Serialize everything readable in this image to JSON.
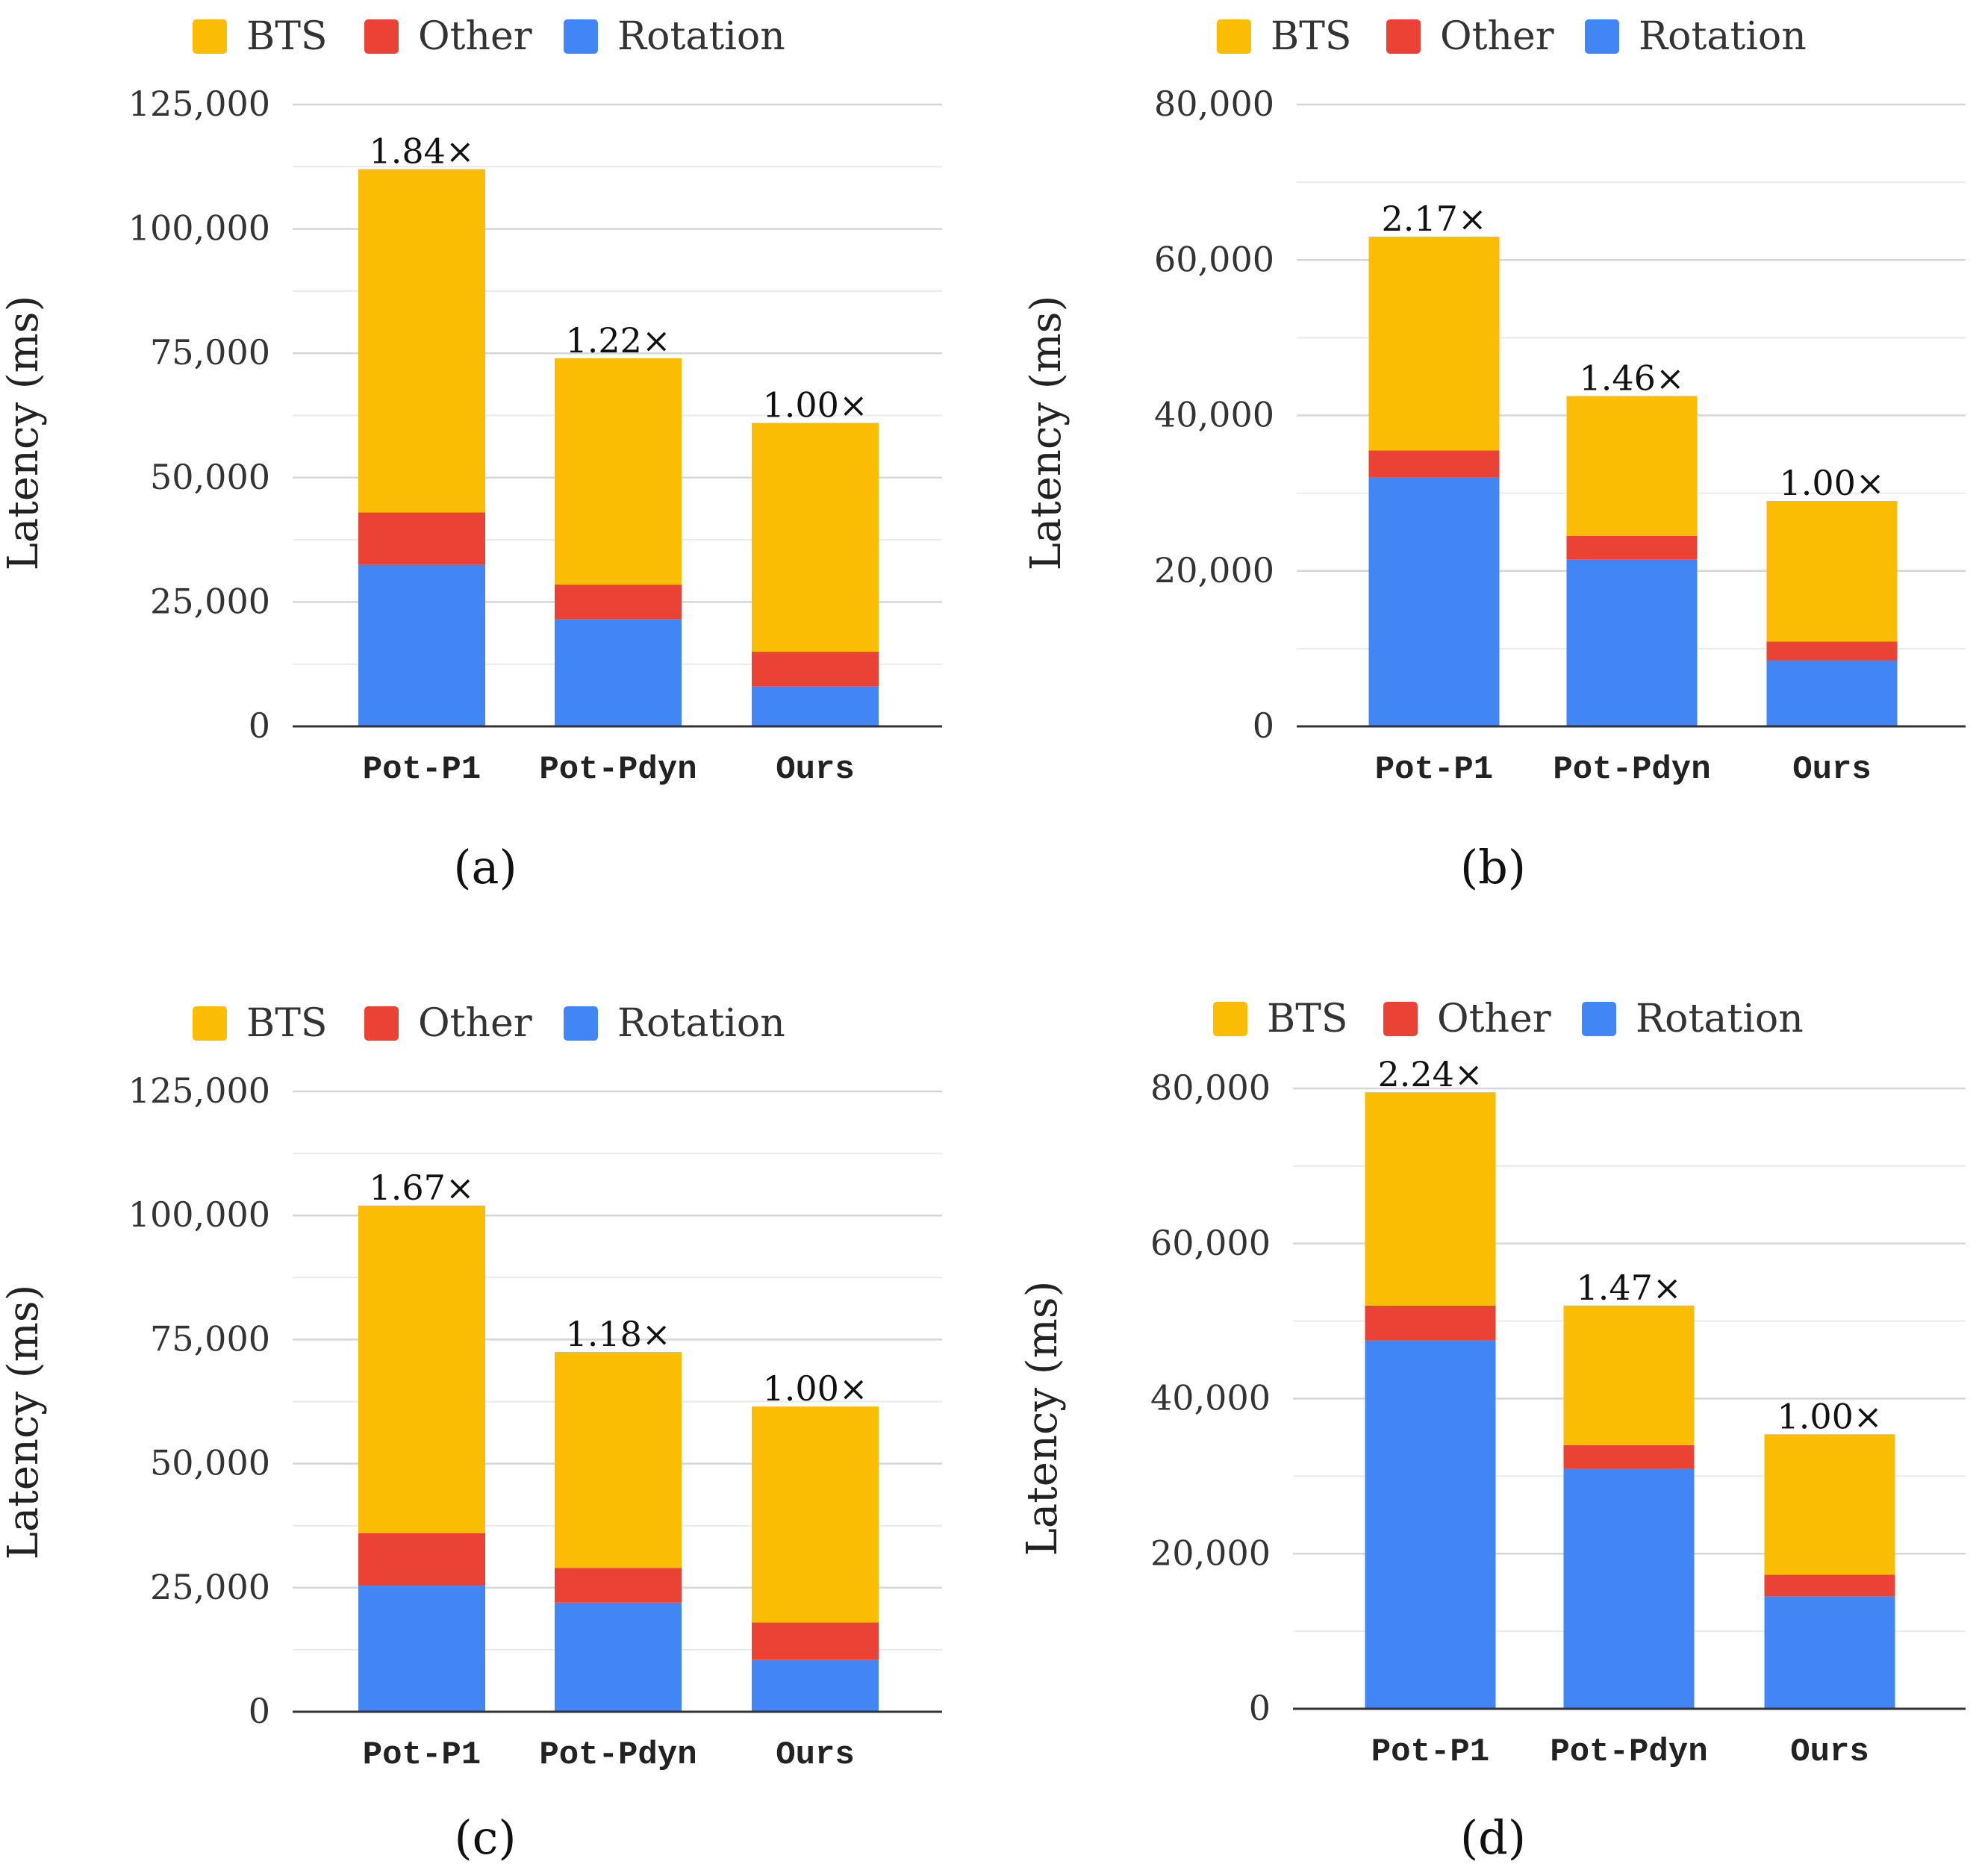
{
  "figure": {
    "legend_labels": [
      "BTS",
      "Other",
      "Rotation"
    ],
    "colors": {
      "BTS": "#FBBC04",
      "Other": "#EA4335",
      "Rotation": "#4285F4",
      "grid": "#d6d6d6",
      "axis": "#333333"
    }
  },
  "chart_data": [
    {
      "type": "bar",
      "stacked": true,
      "panel_label": "(a)",
      "categories": [
        "Pot-P1",
        "Pot-Pdyn",
        "Ours"
      ],
      "series": [
        {
          "name": "Rotation",
          "values": [
            32500,
            21500,
            8000
          ]
        },
        {
          "name": "Other",
          "values": [
            10500,
            7000,
            7000
          ]
        },
        {
          "name": "BTS",
          "values": [
            69000,
            45500,
            46000
          ]
        }
      ],
      "totals": [
        112000,
        74000,
        61000
      ],
      "annotations": [
        "1.84×",
        "1.22×",
        "1.00×"
      ],
      "ylabel": "Latency (ms)",
      "ylim": [
        0,
        125000
      ],
      "yticks": [
        0,
        25000,
        50000,
        75000,
        100000,
        125000
      ],
      "ytick_labels": [
        "0",
        "25,000",
        "50,000",
        "75,000",
        "100,000",
        "125,000"
      ],
      "minor_grid_step": 12500,
      "legend": [
        "BTS",
        "Other",
        "Rotation"
      ],
      "legend_position": "top"
    },
    {
      "type": "bar",
      "stacked": true,
      "panel_label": "(b)",
      "categories": [
        "Pot-P1",
        "Pot-Pdyn",
        "Ours"
      ],
      "series": [
        {
          "name": "Rotation",
          "values": [
            32000,
            21500,
            8500
          ]
        },
        {
          "name": "Other",
          "values": [
            3500,
            3000,
            2400
          ]
        },
        {
          "name": "BTS",
          "values": [
            27500,
            18000,
            18100
          ]
        }
      ],
      "totals": [
        63000,
        42500,
        29000
      ],
      "annotations": [
        "2.17×",
        "1.46×",
        "1.00×"
      ],
      "ylabel": "Latency (ms)",
      "ylim": [
        0,
        80000
      ],
      "yticks": [
        0,
        20000,
        40000,
        60000,
        80000
      ],
      "ytick_labels": [
        "0",
        "20,000",
        "40,000",
        "60,000",
        "80,000"
      ],
      "minor_grid_step": 10000,
      "legend": [
        "BTS",
        "Other",
        "Rotation"
      ],
      "legend_position": "top"
    },
    {
      "type": "bar",
      "stacked": true,
      "panel_label": "(c)",
      "categories": [
        "Pot-P1",
        "Pot-Pdyn",
        "Ours"
      ],
      "series": [
        {
          "name": "Rotation",
          "values": [
            25500,
            22000,
            10500
          ]
        },
        {
          "name": "Other",
          "values": [
            10500,
            7000,
            7500
          ]
        },
        {
          "name": "BTS",
          "values": [
            66000,
            43500,
            43500
          ]
        }
      ],
      "totals": [
        102000,
        72500,
        61500
      ],
      "annotations": [
        "1.67×",
        "1.18×",
        "1.00×"
      ],
      "ylabel": "Latency (ms)",
      "ylim": [
        0,
        125000
      ],
      "yticks": [
        0,
        25000,
        50000,
        75000,
        100000,
        125000
      ],
      "ytick_labels": [
        "0",
        "25,000",
        "50,000",
        "75,000",
        "100,000",
        "125,000"
      ],
      "minor_grid_step": 12500,
      "legend": [
        "BTS",
        "Other",
        "Rotation"
      ],
      "legend_position": "top"
    },
    {
      "type": "bar",
      "stacked": true,
      "panel_label": "(d)",
      "categories": [
        "Pot-P1",
        "Pot-Pdyn",
        "Ours"
      ],
      "series": [
        {
          "name": "Rotation",
          "values": [
            47500,
            31000,
            14500
          ]
        },
        {
          "name": "Other",
          "values": [
            4500,
            3000,
            2800
          ]
        },
        {
          "name": "BTS",
          "values": [
            27500,
            18000,
            18100
          ]
        }
      ],
      "totals": [
        79500,
        52000,
        35400
      ],
      "annotations": [
        "2.24×",
        "1.47×",
        "1.00×"
      ],
      "ylabel": "Latency (ms)",
      "ylim": [
        0,
        80000
      ],
      "yticks": [
        0,
        20000,
        40000,
        60000,
        80000
      ],
      "ytick_labels": [
        "0",
        "20,000",
        "40,000",
        "60,000",
        "80,000"
      ],
      "minor_grid_step": 10000,
      "legend": [
        "BTS",
        "Other",
        "Rotation"
      ],
      "legend_position": "top"
    }
  ]
}
